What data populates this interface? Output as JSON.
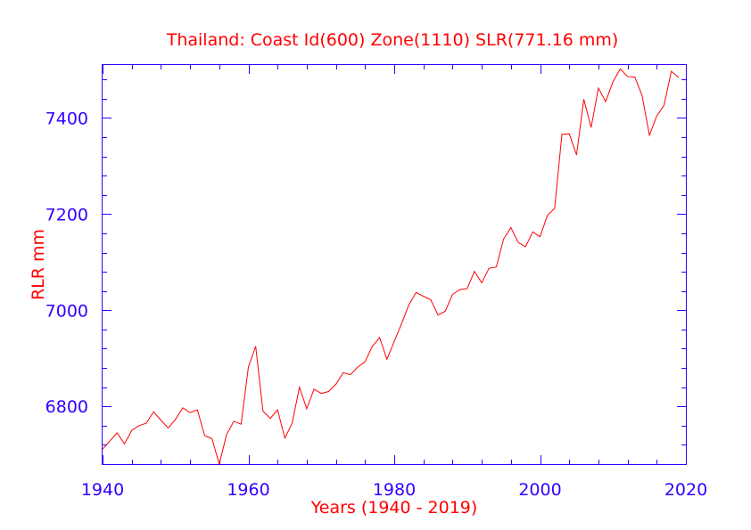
{
  "chart_data": {
    "type": "line",
    "title": "Thailand:  Coast Id(600) Zone(1110) SLR(771.16 mm)",
    "xlabel": "Years (1940 - 2019)",
    "ylabel": "RLR mm",
    "xlim": [
      1940,
      2020
    ],
    "ylim": [
      6680,
      7510
    ],
    "x_ticks": [
      1940,
      1960,
      1980,
      2000,
      2020
    ],
    "y_ticks": [
      6800,
      7000,
      7200,
      7400
    ],
    "grid": false,
    "colors": {
      "series": "#ff0000",
      "axes": "#3300ff",
      "text": "#ff0000"
    },
    "series": [
      {
        "x": [
          1940,
          1941,
          1942,
          1943,
          1944,
          1945,
          1946,
          1947,
          1948,
          1949,
          1950,
          1951,
          1952,
          1953,
          1954,
          1955,
          1956,
          1957,
          1958,
          1959,
          1960,
          1961,
          1962,
          1963,
          1964,
          1965,
          1966,
          1967,
          1968,
          1969,
          1970,
          1971,
          1972,
          1973,
          1974,
          1975,
          1976,
          1977,
          1978,
          1979,
          1980,
          1981,
          1982,
          1983,
          1984,
          1985,
          1986,
          1987,
          1988,
          1989,
          1990,
          1991,
          1992,
          1993,
          1994,
          1995,
          1996,
          1997,
          1998,
          1999,
          2000,
          2001,
          2002,
          2003,
          2004,
          2005,
          2006,
          2007,
          2008,
          2009,
          2010,
          2011,
          2012,
          2013,
          2014,
          2015,
          2016,
          2017,
          2018,
          2019
        ],
        "y": [
          6711,
          6728,
          6745,
          6722,
          6750,
          6760,
          6765,
          6789,
          6771,
          6755,
          6773,
          6797,
          6787,
          6793,
          6739,
          6733,
          6680,
          6741,
          6769,
          6763,
          6882,
          6925,
          6790,
          6775,
          6793,
          6734,
          6765,
          6840,
          6795,
          6836,
          6827,
          6831,
          6846,
          6870,
          6866,
          6882,
          6893,
          6925,
          6943,
          6898,
          6935,
          6972,
          7011,
          7037,
          7029,
          7022,
          6990,
          6998,
          7033,
          7043,
          7045,
          7081,
          7057,
          7087,
          7090,
          7148,
          7172,
          7141,
          7132,
          7163,
          7153,
          7197,
          7212,
          7366,
          7367,
          7323,
          7439,
          7380,
          7462,
          7434,
          7475,
          7502,
          7486,
          7485,
          7446,
          7364,
          7404,
          7426,
          7497,
          7484
        ]
      }
    ]
  }
}
